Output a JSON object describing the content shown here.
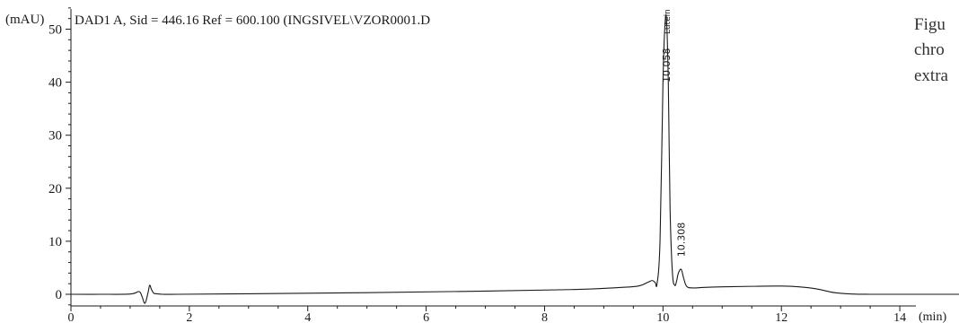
{
  "caption": {
    "line1": "Figu",
    "line2": "chro",
    "line3": "extra"
  },
  "chart_data": {
    "type": "line",
    "title": "DAD1 A, Sid = 446.16 Ref = 600.100 (INGSIVEL\\VZOR0001.D",
    "xlabel": "(min)",
    "ylabel": "(mAU)",
    "xlim": [
      0,
      15.0
    ],
    "ylim": [
      -2.2,
      55.5
    ],
    "x_ticks": [
      0,
      2,
      4,
      6,
      8,
      10,
      12,
      14
    ],
    "x_tick_labels": [
      "0",
      "2",
      "4",
      "6",
      "8",
      "10",
      "12",
      "14"
    ],
    "y_ticks": [
      0,
      10,
      20,
      30,
      40,
      50
    ],
    "y_tick_labels": [
      "0",
      "10",
      "20",
      "30",
      "40",
      "50"
    ],
    "grid": false,
    "line_color": "#1a1a1a",
    "series": [
      {
        "x": [
          0,
          0.5,
          1.0,
          1.15,
          1.2,
          1.25,
          1.3,
          1.33,
          1.36,
          1.4,
          1.45,
          1.55,
          1.8,
          3.0,
          5.0,
          7.0,
          8.5,
          9.3,
          9.6,
          9.75,
          9.82,
          9.87,
          9.9,
          9.95,
          10.0,
          10.03,
          10.058,
          10.09,
          10.12,
          10.16,
          10.2,
          10.23,
          10.26,
          10.308,
          10.35,
          10.4,
          10.5,
          10.7,
          11.0,
          11.5,
          12.0,
          12.3,
          12.6,
          12.9,
          13.2,
          13.5,
          14.0,
          14.5,
          15.0
        ],
        "y": [
          0.0,
          0.0,
          0.05,
          0.5,
          -0.4,
          -1.7,
          0.2,
          1.7,
          0.9,
          0.2,
          0.1,
          0.0,
          0.0,
          0.1,
          0.3,
          0.6,
          0.9,
          1.3,
          1.6,
          2.3,
          2.6,
          2.2,
          2.0,
          10.0,
          40.0,
          50.0,
          52.0,
          40.0,
          16.0,
          4.0,
          1.7,
          2.5,
          4.0,
          4.7,
          3.0,
          1.5,
          1.2,
          1.3,
          1.4,
          1.5,
          1.55,
          1.4,
          1.0,
          0.3,
          0.05,
          0.0,
          0.0,
          0.0,
          0.0
        ]
      }
    ],
    "annotations": [
      {
        "text": "Lutein",
        "x": 10.058,
        "y": 52.0
      },
      {
        "text": "10.058",
        "x": 10.058,
        "y": 52.0
      },
      {
        "text": "10.308",
        "x": 10.308,
        "y": 4.7
      }
    ]
  }
}
